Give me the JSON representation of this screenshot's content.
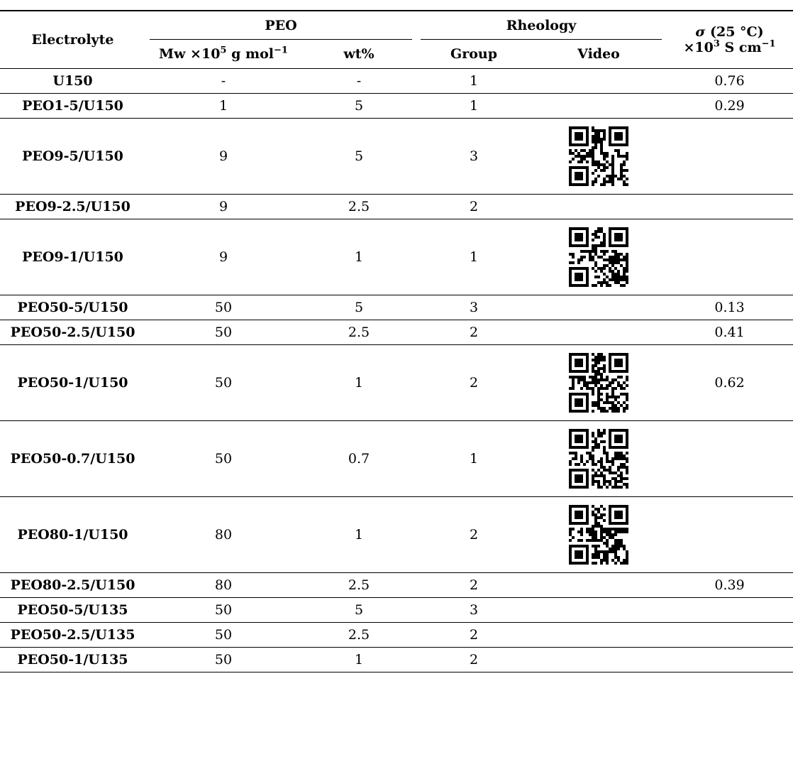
{
  "table": {
    "headers": {
      "electrolyte": "Electrolyte",
      "peo": "PEO",
      "rheology": "Rheology",
      "sigma": {
        "symbol": "σ",
        "temp": " (25 °C)",
        "unit_prefix": "×10",
        "unit_exp": "3",
        "unit_rest": " S cm",
        "unit_exp2": "−1"
      },
      "mw": {
        "prefix": "Mw ×10",
        "exp": "5",
        "rest": " g mol",
        "exp2": "−1"
      },
      "wt": "wt%",
      "group": "Group",
      "video": "Video"
    },
    "rows": [
      {
        "electrolyte": "U150",
        "mw": "-",
        "wt": "-",
        "group": "1",
        "video": false,
        "sigma": "0.76"
      },
      {
        "electrolyte": "PEO1-5/U150",
        "mw": "1",
        "wt": "5",
        "group": "1",
        "video": false,
        "sigma": "0.29"
      },
      {
        "electrolyte": "PEO9-5/U150",
        "mw": "9",
        "wt": "5",
        "group": "3",
        "video": true,
        "sigma": ""
      },
      {
        "electrolyte": "PEO9-2.5/U150",
        "mw": "9",
        "wt": "2.5",
        "group": "2",
        "video": false,
        "sigma": ""
      },
      {
        "electrolyte": "PEO9-1/U150",
        "mw": "9",
        "wt": "1",
        "group": "1",
        "video": true,
        "sigma": ""
      },
      {
        "electrolyte": "PEO50-5/U150",
        "mw": "50",
        "wt": "5",
        "group": "3",
        "video": false,
        "sigma": "0.13"
      },
      {
        "electrolyte": "PEO50-2.5/U150",
        "mw": "50",
        "wt": "2.5",
        "group": "2",
        "video": false,
        "sigma": "0.41"
      },
      {
        "electrolyte": "PEO50-1/U150",
        "mw": "50",
        "wt": "1",
        "group": "2",
        "video": true,
        "sigma": "0.62"
      },
      {
        "electrolyte": "PEO50-0.7/U150",
        "mw": "50",
        "wt": "0.7",
        "group": "1",
        "video": true,
        "sigma": ""
      },
      {
        "electrolyte": "PEO80-1/U150",
        "mw": "80",
        "wt": "1",
        "group": "2",
        "video": true,
        "sigma": ""
      },
      {
        "electrolyte": "PEO80-2.5/U150",
        "mw": "80",
        "wt": "2.5",
        "group": "2",
        "video": false,
        "sigma": "0.39"
      },
      {
        "electrolyte": "PEO50-5/U135",
        "mw": "50",
        "wt": "5",
        "group": "3",
        "video": false,
        "sigma": ""
      },
      {
        "electrolyte": "PEO50-2.5/U135",
        "mw": "50",
        "wt": "2.5",
        "group": "2",
        "video": false,
        "sigma": ""
      },
      {
        "electrolyte": "PEO50-1/U135",
        "mw": "50",
        "wt": "1",
        "group": "2",
        "video": false,
        "sigma": ""
      }
    ]
  }
}
